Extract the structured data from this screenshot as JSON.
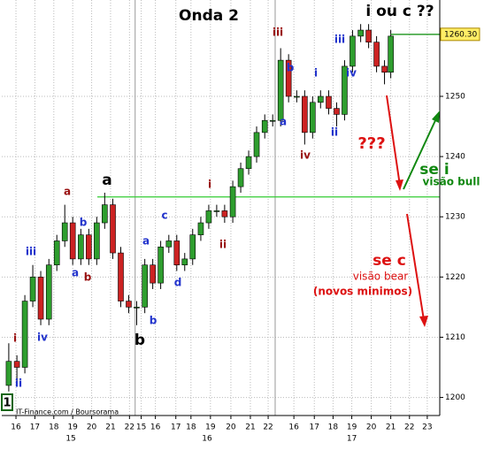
{
  "chart_data": {
    "type": "candlestick",
    "title": "Onda 2",
    "subtitle": "i ou c ??",
    "source": "IT-Finance.com / Boursorama",
    "badge": "1",
    "x": [
      -0.38,
      0.05,
      0.47,
      0.89,
      1.31,
      1.74,
      2.16,
      2.58,
      3.0,
      3.43,
      3.85,
      4.27,
      4.69,
      5.12,
      5.54,
      5.96,
      6.38,
      6.81,
      7.23,
      7.65,
      8.08,
      8.5,
      8.92,
      9.34,
      9.77,
      10.19,
      10.61,
      11.03,
      11.46,
      11.88,
      12.3,
      12.72,
      13.15,
      13.57,
      13.99,
      14.41,
      14.84,
      15.26,
      15.68,
      16.1,
      16.53,
      16.95,
      17.37,
      17.79,
      18.22,
      18.64,
      19.06,
      19.48,
      19.81
    ],
    "open": [
      1202,
      1206,
      1205,
      1216,
      1220,
      1213,
      1222,
      1226,
      1229,
      1223,
      1227,
      1223,
      1229,
      1232,
      1224,
      1216,
      1215,
      1215,
      1222,
      1219,
      1225,
      1226,
      1222,
      1223,
      1227,
      1229,
      1231,
      1231,
      1230,
      1235,
      1238,
      1240,
      1244,
      1246,
      1246,
      1256,
      1250,
      1250,
      1244,
      1249,
      1250,
      1248,
      1247,
      1255,
      1260,
      1261,
      1259,
      1255,
      1254
    ],
    "high": [
      1209,
      1207,
      1217,
      1222,
      1221,
      1223,
      1227,
      1232,
      1230,
      1228,
      1228,
      1230,
      1234,
      1233,
      1225,
      1217,
      1216,
      1223,
      1223,
      1226,
      1227,
      1227,
      1224,
      1228,
      1230,
      1232,
      1232,
      1232,
      1236,
      1239,
      1241,
      1245,
      1247,
      1247,
      1258,
      1257,
      1251,
      1251,
      1250,
      1251,
      1251,
      1249,
      1256,
      1261,
      1262,
      1262,
      1260,
      1256,
      1261
    ],
    "low": [
      1201,
      1202,
      1204,
      1215,
      1212,
      1212,
      1221,
      1225,
      1222,
      1222,
      1222,
      1222,
      1228,
      1223,
      1215,
      1214,
      1212,
      1214,
      1218,
      1218,
      1224,
      1221,
      1221,
      1222,
      1226,
      1228,
      1230,
      1229,
      1229,
      1234,
      1237,
      1239,
      1243,
      1245,
      1245,
      1249,
      1249,
      1242,
      1243,
      1248,
      1247,
      1245,
      1246,
      1254,
      1259,
      1258,
      1254,
      1252,
      1253
    ],
    "close": [
      1206,
      1205,
      1216,
      1220,
      1213,
      1222,
      1226,
      1229,
      1223,
      1227,
      1223,
      1229,
      1232,
      1224,
      1216,
      1215,
      1215,
      1222,
      1219,
      1225,
      1226,
      1222,
      1223,
      1227,
      1229,
      1231,
      1231,
      1230,
      1235,
      1238,
      1240,
      1244,
      1246,
      1246,
      1256,
      1250,
      1250,
      1244,
      1249,
      1250,
      1248,
      1247,
      1255,
      1260,
      1261,
      1259,
      1255,
      1254,
      1260
    ],
    "up_color": "#2e9e2e",
    "down_color": "#cc2222",
    "xlim": [
      -0.75,
      22.4
    ],
    "ylim": [
      1197,
      1266
    ],
    "yticks": [
      1200,
      1210,
      1220,
      1230,
      1240,
      1250
    ],
    "xticks": [
      {
        "value": 0,
        "label": "16"
      },
      {
        "value": 1,
        "label": "17"
      },
      {
        "value": 2,
        "label": "18"
      },
      {
        "value": 3,
        "label": "19"
      },
      {
        "value": 4,
        "label": "20"
      },
      {
        "value": 5,
        "label": "21"
      },
      {
        "value": 6,
        "label": "22"
      },
      {
        "value": 6.62,
        "label": "15"
      },
      {
        "value": 7.37,
        "label": "16"
      },
      {
        "value": 8.45,
        "label": "17"
      },
      {
        "value": 9.25,
        "label": "18"
      },
      {
        "value": 10.28,
        "label": "19"
      },
      {
        "value": 11.36,
        "label": "20"
      },
      {
        "value": 12.39,
        "label": "21"
      },
      {
        "value": 13.33,
        "label": "22"
      },
      {
        "value": 14.69,
        "label": "16"
      },
      {
        "value": 15.77,
        "label": "17"
      },
      {
        "value": 16.76,
        "label": "18"
      },
      {
        "value": 17.75,
        "label": "19"
      },
      {
        "value": 18.78,
        "label": "20"
      },
      {
        "value": 19.81,
        "label": "21"
      },
      {
        "value": 20.8,
        "label": "22"
      },
      {
        "value": 21.74,
        "label": "23"
      }
    ],
    "dates": [
      {
        "value": 2.9,
        "label": "15"
      },
      {
        "value": 10.1,
        "label": "16"
      },
      {
        "value": 17.75,
        "label": "17"
      }
    ],
    "day_breaks": [
      6.3,
      13.7
    ],
    "grid": true,
    "reference_line": {
      "value": 1233.3,
      "from": 4.3,
      "color": "#33cc33"
    },
    "last_price": {
      "value": 1260.3,
      "label": "1260.30"
    },
    "annotations": [
      "i",
      "ii",
      "iii",
      "iv",
      "a",
      "a",
      "b",
      "b",
      "a",
      "b",
      "a",
      "b",
      "c",
      "d",
      "i",
      "ii",
      "iii",
      "a",
      "b",
      "iv",
      "i",
      "ii",
      "iii",
      "iv",
      "???",
      "se i",
      "visão bull",
      "se c",
      "visão bear",
      "(novos minimos)"
    ]
  }
}
